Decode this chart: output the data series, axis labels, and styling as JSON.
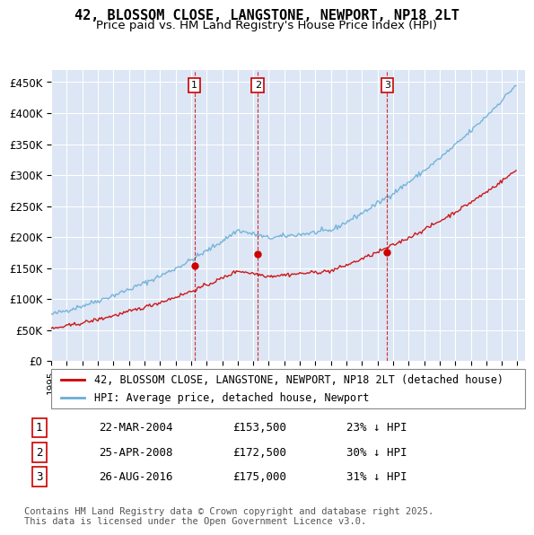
{
  "title": "42, BLOSSOM CLOSE, LANGSTONE, NEWPORT, NP18 2LT",
  "subtitle": "Price paid vs. HM Land Registry's House Price Index (HPI)",
  "xlabel": "",
  "ylabel": "",
  "background_color": "#ffffff",
  "plot_bg_color": "#dce6f5",
  "grid_color": "#ffffff",
  "hpi_color": "#6baed6",
  "price_color": "#cc0000",
  "sale_marker_color": "#cc0000",
  "vline_color": "#cc0000",
  "annotation_box_color": "#cc0000",
  "ylim": [
    0,
    470000
  ],
  "yticks": [
    0,
    50000,
    100000,
    150000,
    200000,
    250000,
    300000,
    350000,
    400000,
    450000
  ],
  "ytick_labels": [
    "£0",
    "£50K",
    "£100K",
    "£150K",
    "£200K",
    "£250K",
    "£300K",
    "£350K",
    "£400K",
    "£450K"
  ],
  "sale_dates": [
    "2004-03-22",
    "2008-04-25",
    "2016-08-26"
  ],
  "sale_prices": [
    153500,
    172500,
    175000
  ],
  "sale_labels": [
    "1",
    "2",
    "3"
  ],
  "sale_info": [
    {
      "label": "1",
      "date": "22-MAR-2004",
      "price": "£153,500",
      "pct": "23% ↓ HPI"
    },
    {
      "label": "2",
      "date": "25-APR-2008",
      "price": "£172,500",
      "pct": "30% ↓ HPI"
    },
    {
      "label": "3",
      "date": "26-AUG-2016",
      "price": "£175,000",
      "pct": "31% ↓ HPI"
    }
  ],
  "legend_entries": [
    {
      "label": "42, BLOSSOM CLOSE, LANGSTONE, NEWPORT, NP18 2LT (detached house)",
      "color": "#cc0000"
    },
    {
      "label": "HPI: Average price, detached house, Newport",
      "color": "#6baed6"
    }
  ],
  "footer": "Contains HM Land Registry data © Crown copyright and database right 2025.\nThis data is licensed under the Open Government Licence v3.0.",
  "title_fontsize": 11,
  "subtitle_fontsize": 9.5,
  "tick_fontsize": 8.5,
  "legend_fontsize": 8.5,
  "footer_fontsize": 7.5,
  "annotation_fontsize": 8
}
